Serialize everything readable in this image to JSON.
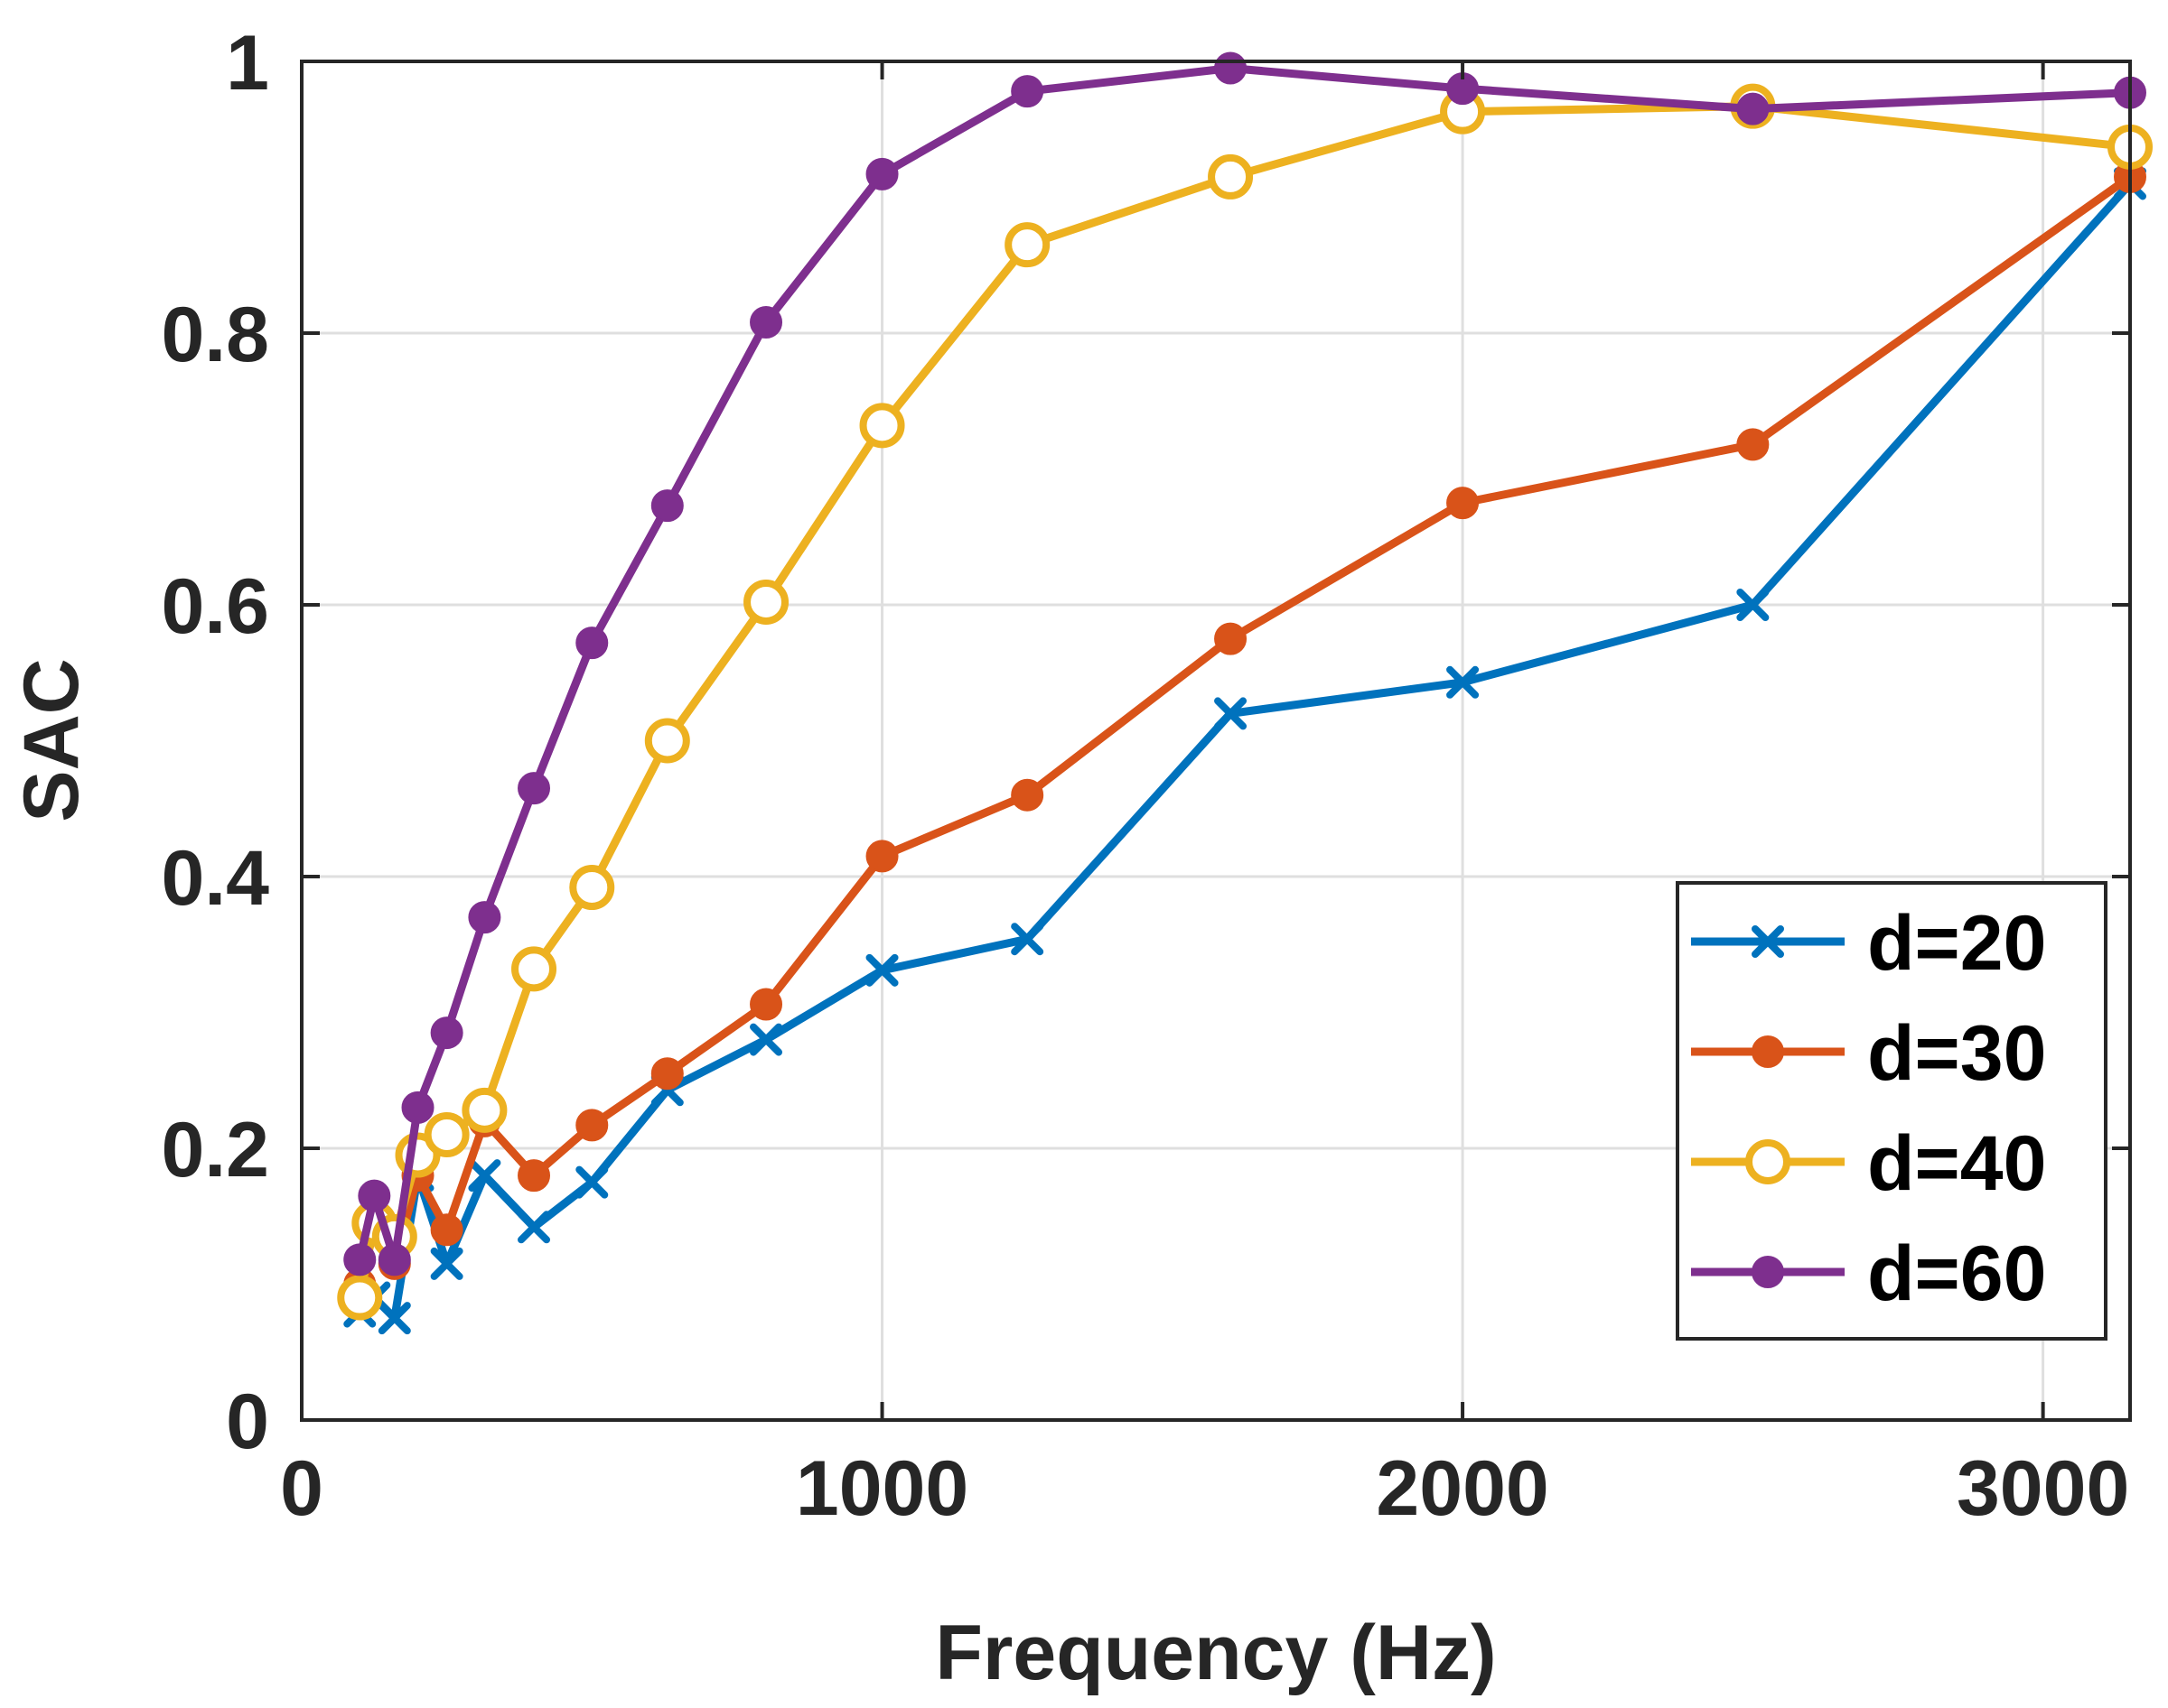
{
  "chart_data": {
    "type": "line",
    "title": "",
    "xlabel": "Frequency (Hz)",
    "ylabel": "SAC",
    "xlim": [
      0,
      3150
    ],
    "ylim": [
      0,
      1
    ],
    "xticks": [
      0,
      1000,
      2000,
      3000
    ],
    "xtick_labels": [
      "0",
      "1000",
      "2000",
      "3000"
    ],
    "yticks": [
      0,
      0.2,
      0.4,
      0.6,
      0.8,
      1
    ],
    "ytick_labels": [
      "0",
      "0.2",
      "0.4",
      "0.6",
      "0.8",
      "1"
    ],
    "grid": true,
    "legend_position": "bottom-right",
    "x": [
      100,
      125,
      160,
      200,
      250,
      315,
      400,
      500,
      630,
      800,
      1000,
      1250,
      1600,
      2000,
      2500,
      3150
    ],
    "series": [
      {
        "name": "d=20",
        "color": "#0072BD",
        "marker": "x",
        "values": [
          0.08,
          0.09,
          0.075,
          0.18,
          0.115,
          0.18,
          0.142,
          0.175,
          0.243,
          0.28,
          0.331,
          0.354,
          0.52,
          0.543,
          0.6,
          0.91
        ]
      },
      {
        "name": "d=30",
        "color": "#D95319",
        "marker": "filled-circle",
        "values": [
          0.1,
          0.14,
          0.115,
          0.18,
          0.14,
          0.22,
          0.18,
          0.217,
          0.255,
          0.306,
          0.415,
          0.46,
          0.575,
          0.675,
          0.718,
          0.915
        ]
      },
      {
        "name": "d=40",
        "color": "#EDB120",
        "marker": "open-circle",
        "values": [
          0.09,
          0.145,
          0.135,
          0.195,
          0.21,
          0.228,
          0.332,
          0.392,
          0.5,
          0.602,
          0.732,
          0.865,
          0.915,
          0.963,
          0.967,
          0.937
        ]
      },
      {
        "name": "d=60",
        "color": "#7E2F8E",
        "marker": "filled-circle",
        "values": [
          0.118,
          0.165,
          0.118,
          0.23,
          0.285,
          0.37,
          0.465,
          0.572,
          0.673,
          0.808,
          0.917,
          0.978,
          0.995,
          0.98,
          0.965,
          0.977
        ]
      }
    ]
  }
}
